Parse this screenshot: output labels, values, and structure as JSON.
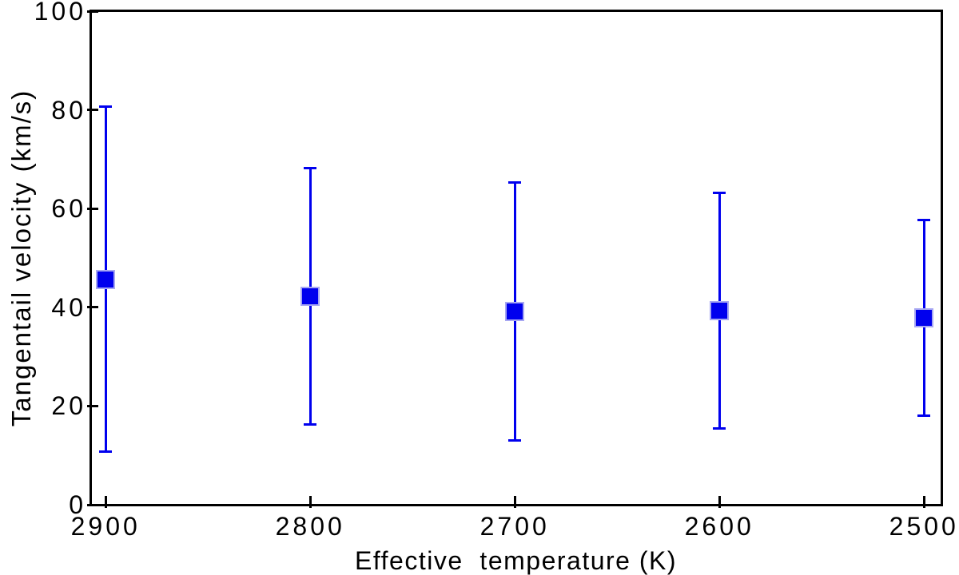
{
  "chart_data": {
    "type": "scatter",
    "title": "",
    "xlabel": "Effective  temperature (K)",
    "ylabel": "Tangentail velocity (km/s)",
    "x_ticks": [
      "2900",
      "2800",
      "2700",
      "2600",
      "2500"
    ],
    "x_tick_values": [
      2900,
      2800,
      2700,
      2600,
      2500
    ],
    "y_ticks": [
      "0",
      "20",
      "40",
      "60",
      "80",
      "100"
    ],
    "y_tick_values": [
      0,
      20,
      40,
      60,
      80,
      100
    ],
    "xlim": [
      2907.5,
      2491.5
    ],
    "ylim": [
      0,
      100
    ],
    "x_axis_reversed": true,
    "grid": false,
    "legend": null,
    "axis_color": "#000000",
    "background_color": "#ffffff",
    "series": [
      {
        "name": "tangential-velocity",
        "marker": "filled-square",
        "color": "#0000ee",
        "marker_halo_color": "#a8a8f2",
        "points": [
          {
            "x": 2900,
            "y": 45.7,
            "y_lower": 10.8,
            "y_upper": 80.7
          },
          {
            "x": 2800,
            "y": 42.3,
            "y_lower": 16.2,
            "y_upper": 68.2
          },
          {
            "x": 2700,
            "y": 39.1,
            "y_lower": 13.1,
            "y_upper": 65.3
          },
          {
            "x": 2600,
            "y": 39.4,
            "y_lower": 15.4,
            "y_upper": 63.2
          },
          {
            "x": 2500,
            "y": 37.9,
            "y_lower": 18.0,
            "y_upper": 57.7
          }
        ]
      }
    ]
  }
}
